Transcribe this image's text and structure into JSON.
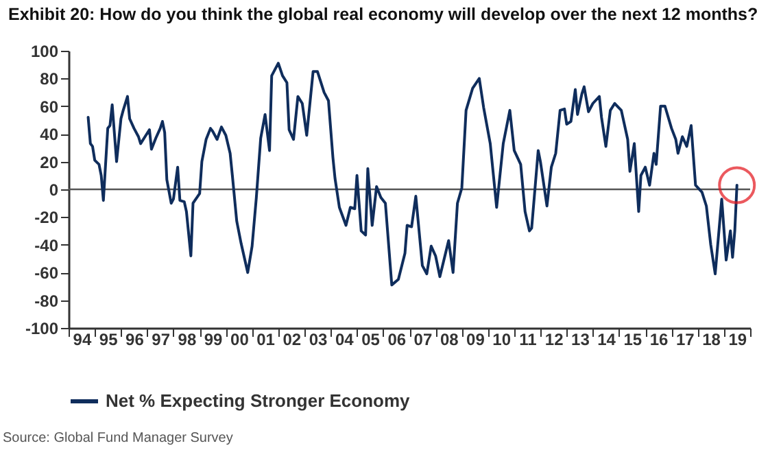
{
  "chart_data": {
    "type": "line",
    "title": "Exhibit 20: How do you think the global real economy will develop over the next 12 months?",
    "annotations": [
      "Source: Global Fund Manager Survey"
    ],
    "x": [
      "1994-10",
      "1994-11",
      "1994-12",
      "1995-01",
      "1995-03",
      "1995-04",
      "1995-05",
      "1995-07",
      "1995-08",
      "1995-09",
      "1995-11",
      "1996-01",
      "1996-02",
      "1996-04",
      "1996-05",
      "1996-07",
      "1996-09",
      "1996-10",
      "1996-12",
      "1997-02",
      "1997-03",
      "1997-05",
      "1997-07",
      "1997-08",
      "1997-09",
      "1997-10",
      "1997-12",
      "1998-01",
      "1998-03",
      "1998-04",
      "1998-06",
      "1998-07",
      "1998-09",
      "1998-10",
      "1999-01",
      "1999-02",
      "1999-04",
      "1999-06",
      "1999-07",
      "1999-09",
      "1999-11",
      "2000-01",
      "2000-03",
      "2000-04",
      "2000-06",
      "2000-08",
      "2000-11",
      "2001-01",
      "2001-03",
      "2001-05",
      "2001-07",
      "2001-09",
      "2001-10",
      "2002-01",
      "2002-03",
      "2002-05",
      "2002-06",
      "2002-08",
      "2002-10",
      "2002-12",
      "2003-02",
      "2003-05",
      "2003-07",
      "2003-10",
      "2003-12",
      "2004-02",
      "2004-03",
      "2004-05",
      "2004-08",
      "2004-10",
      "2004-12",
      "2005-01",
      "2005-03",
      "2005-05",
      "2005-06",
      "2005-08",
      "2005-10",
      "2005-12",
      "2006-02",
      "2006-05",
      "2006-08",
      "2006-11",
      "2006-12",
      "2007-02",
      "2007-04",
      "2007-07",
      "2007-09",
      "2007-11",
      "2008-01",
      "2008-03",
      "2008-07",
      "2008-09",
      "2008-11",
      "2009-01",
      "2009-03",
      "2009-06",
      "2009-09",
      "2009-11",
      "2010-02",
      "2010-05",
      "2010-08",
      "2010-11",
      "2011-01",
      "2011-04",
      "2011-06",
      "2011-08",
      "2011-09",
      "2011-12",
      "2012-01",
      "2012-04",
      "2012-06",
      "2012-08",
      "2012-10",
      "2012-12",
      "2013-01",
      "2013-03",
      "2013-05",
      "2013-06",
      "2013-08",
      "2013-09",
      "2013-11",
      "2014-01",
      "2014-04",
      "2014-05",
      "2014-07",
      "2014-09",
      "2014-11",
      "2015-02",
      "2015-05",
      "2015-06",
      "2015-08",
      "2015-10",
      "2015-11",
      "2016-01",
      "2016-03",
      "2016-05",
      "2016-06",
      "2016-08",
      "2016-10",
      "2017-01",
      "2017-03",
      "2017-04",
      "2017-06",
      "2017-08",
      "2017-10",
      "2017-12",
      "2018-03",
      "2018-05",
      "2018-07",
      "2018-09",
      "2018-12",
      "2019-02",
      "2019-04",
      "2019-05",
      "2019-06",
      "2019-07"
    ],
    "series": [
      {
        "name": "Net % Expecting Stronger Economy",
        "color": "#0f2d5c",
        "values": [
          52,
          33,
          31,
          21,
          18,
          10,
          -8,
          44,
          46,
          61,
          20,
          51,
          57,
          67,
          51,
          44,
          38,
          33,
          38,
          43,
          29,
          37,
          44,
          49,
          41,
          7,
          -10,
          -7,
          16,
          -8,
          -9,
          -16,
          -48,
          -10,
          -3,
          20,
          36,
          44,
          42,
          36,
          45,
          39,
          26,
          10,
          -23,
          -39,
          -60,
          -41,
          -6,
          37,
          54,
          28,
          82,
          91,
          82,
          77,
          43,
          36,
          67,
          62,
          39,
          85,
          85,
          70,
          64,
          23,
          8,
          -13,
          -26,
          -13,
          -14,
          10,
          -30,
          -33,
          15,
          -26,
          2,
          -6,
          -10,
          -69,
          -65,
          -46,
          -26,
          -27,
          -5,
          -55,
          -61,
          -41,
          -48,
          -63,
          -37,
          -60,
          -10,
          1,
          57,
          73,
          80,
          59,
          33,
          -13,
          33,
          57,
          28,
          18,
          -16,
          -30,
          -28,
          28,
          20,
          -12,
          16,
          26,
          57,
          58,
          47,
          49,
          72,
          54,
          69,
          74,
          56,
          62,
          67,
          52,
          31,
          57,
          62,
          57,
          36,
          13,
          33,
          -16,
          10,
          16,
          3,
          26,
          18,
          60,
          60,
          44,
          36,
          26,
          38,
          31,
          46,
          3,
          -2,
          -12,
          -40,
          -61,
          -7,
          -51,
          -30,
          -49,
          -30,
          3
        ]
      }
    ],
    "xlim": [
      "1994-01",
      "2020-01"
    ],
    "xticks": [
      {
        "value": "1994-01",
        "label": null
      },
      {
        "value": "1994-07",
        "label": "94"
      },
      {
        "value": "1995-01",
        "label": null
      },
      {
        "value": "1995-07",
        "label": "95"
      },
      {
        "value": "1996-01",
        "label": null
      },
      {
        "value": "1996-07",
        "label": "96"
      },
      {
        "value": "1997-01",
        "label": null
      },
      {
        "value": "1997-07",
        "label": "97"
      },
      {
        "value": "1998-01",
        "label": null
      },
      {
        "value": "1998-07",
        "label": "98"
      },
      {
        "value": "1999-01",
        "label": null
      },
      {
        "value": "1999-07",
        "label": "99"
      },
      {
        "value": "2000-01",
        "label": null
      },
      {
        "value": "2000-07",
        "label": "00"
      },
      {
        "value": "2001-01",
        "label": null
      },
      {
        "value": "2001-07",
        "label": "01"
      },
      {
        "value": "2002-01",
        "label": null
      },
      {
        "value": "2002-07",
        "label": "02"
      },
      {
        "value": "2003-01",
        "label": null
      },
      {
        "value": "2003-07",
        "label": "03"
      },
      {
        "value": "2004-01",
        "label": null
      },
      {
        "value": "2004-07",
        "label": "04"
      },
      {
        "value": "2005-01",
        "label": null
      },
      {
        "value": "2005-07",
        "label": "05"
      },
      {
        "value": "2006-01",
        "label": null
      },
      {
        "value": "2006-07",
        "label": "06"
      },
      {
        "value": "2007-01",
        "label": null
      },
      {
        "value": "2007-07",
        "label": "07"
      },
      {
        "value": "2008-01",
        "label": null
      },
      {
        "value": "2008-07",
        "label": "08"
      },
      {
        "value": "2009-01",
        "label": null
      },
      {
        "value": "2009-07",
        "label": "09"
      },
      {
        "value": "2010-01",
        "label": null
      },
      {
        "value": "2010-07",
        "label": "10"
      },
      {
        "value": "2011-01",
        "label": null
      },
      {
        "value": "2011-07",
        "label": "11"
      },
      {
        "value": "2012-01",
        "label": null
      },
      {
        "value": "2012-07",
        "label": "12"
      },
      {
        "value": "2013-01",
        "label": null
      },
      {
        "value": "2013-07",
        "label": "13"
      },
      {
        "value": "2014-01",
        "label": null
      },
      {
        "value": "2014-07",
        "label": "14"
      },
      {
        "value": "2015-01",
        "label": null
      },
      {
        "value": "2015-07",
        "label": "15"
      },
      {
        "value": "2016-01",
        "label": null
      },
      {
        "value": "2016-07",
        "label": "16"
      },
      {
        "value": "2017-01",
        "label": null
      },
      {
        "value": "2017-07",
        "label": "17"
      },
      {
        "value": "2018-01",
        "label": null
      },
      {
        "value": "2018-07",
        "label": "18"
      },
      {
        "value": "2019-01",
        "label": null
      },
      {
        "value": "2019-07",
        "label": "19"
      },
      {
        "value": "2020-01",
        "label": null
      }
    ],
    "ylim": [
      -100,
      100
    ],
    "yticks": [
      -100,
      -80,
      -60,
      -40,
      -20,
      0,
      20,
      40,
      60,
      80,
      100
    ],
    "ref_lines": [
      {
        "axis": "y",
        "value": 0,
        "color": "#555555"
      }
    ],
    "grid": false,
    "legend": "bottom",
    "marker": "none",
    "line_style": "solid"
  }
}
